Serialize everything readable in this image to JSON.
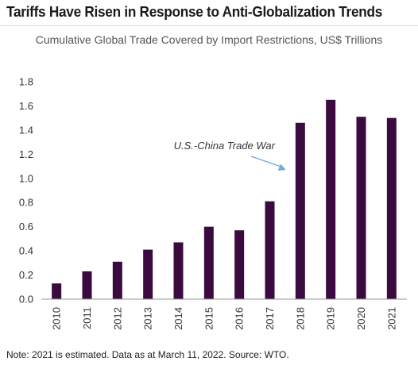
{
  "header": {
    "title": "Tariffs Have Risen in Response to Anti-Globalization Trends"
  },
  "footer": {
    "note": "Note: 2021 is estimated. Data as at March 11, 2022. Source: WTO."
  },
  "colors": {
    "bar": "#3b0a3f",
    "arrow": "#6fa8dc",
    "axis": "#999999"
  },
  "chart_data": {
    "type": "bar",
    "title": "Cumulative Global Trade Covered by Import Restrictions, US$ Trillions",
    "xlabel": "",
    "ylabel": "",
    "categories": [
      "2010",
      "2011",
      "2012",
      "2013",
      "2014",
      "2015",
      "2016",
      "2017",
      "2018",
      "2019",
      "2020",
      "2021"
    ],
    "values": [
      0.13,
      0.23,
      0.31,
      0.41,
      0.47,
      0.6,
      0.57,
      0.81,
      1.46,
      1.65,
      1.51,
      1.5
    ],
    "ylim": [
      0,
      1.8
    ],
    "yticks": [
      "0.0",
      "0.2",
      "0.4",
      "0.6",
      "0.8",
      "1.0",
      "1.2",
      "1.4",
      "1.6",
      "1.8"
    ],
    "grid": false,
    "legend": "none",
    "annotations": [
      {
        "text": "U.S.-China Trade War",
        "points_to": "2018"
      }
    ]
  }
}
